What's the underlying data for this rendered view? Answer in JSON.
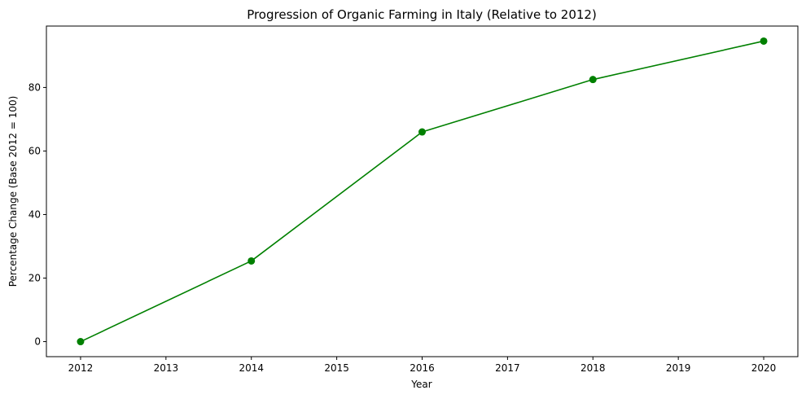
{
  "chart_data": {
    "type": "line",
    "title": "Progression of Organic Farming in Italy (Relative to 2012)",
    "xlabel": "Year",
    "ylabel": "Percentage Change (Base 2012 = 100)",
    "x": [
      2012,
      2014,
      2016,
      2018,
      2020
    ],
    "series": [
      {
        "values": [
          0,
          25.4,
          66.0,
          82.5,
          94.6
        ]
      }
    ],
    "xticks": [
      "2012",
      "2013",
      "2014",
      "2015",
      "2016",
      "2017",
      "2018",
      "2019",
      "2020"
    ],
    "yticks": [
      "0",
      "20",
      "40",
      "60",
      "80"
    ],
    "xlim": [
      2011.6,
      2020.4
    ],
    "ylim": [
      -4.73,
      99.33
    ],
    "grid": false,
    "line_color": "#008000",
    "marker": "circle"
  }
}
